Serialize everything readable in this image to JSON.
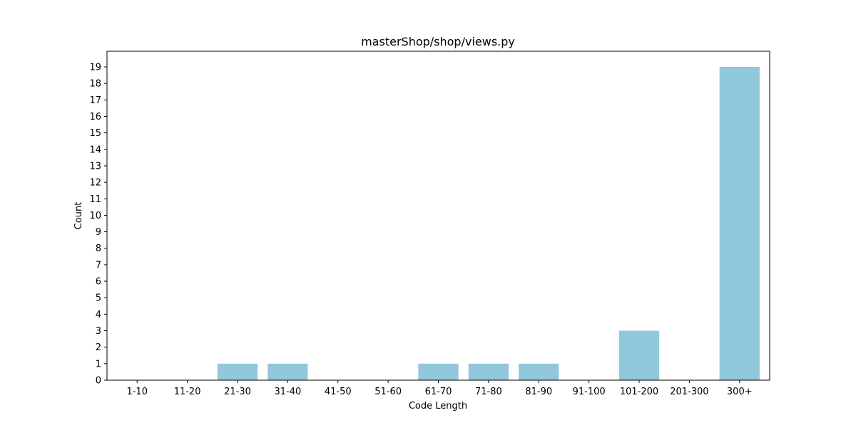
{
  "chart_data": {
    "type": "bar",
    "title": "masterShop/shop/views.py",
    "xlabel": "Code Length",
    "ylabel": "Count",
    "categories": [
      "1-10",
      "11-20",
      "21-30",
      "31-40",
      "41-50",
      "51-60",
      "61-70",
      "71-80",
      "81-90",
      "91-100",
      "101-200",
      "201-300",
      "300+"
    ],
    "values": [
      0,
      0,
      1,
      1,
      0,
      0,
      1,
      1,
      1,
      0,
      3,
      0,
      19
    ],
    "ylim": [
      0,
      19.95
    ],
    "yticks": [
      0,
      1,
      2,
      3,
      4,
      5,
      6,
      7,
      8,
      9,
      10,
      11,
      12,
      13,
      14,
      15,
      16,
      17,
      18,
      19
    ],
    "bar_color": "#92c8dc",
    "grid": false,
    "legend": "none"
  }
}
